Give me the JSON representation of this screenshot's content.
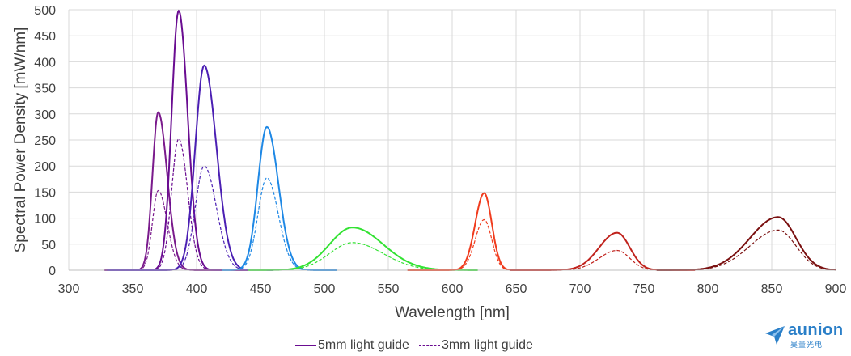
{
  "chart_data": {
    "type": "line",
    "title": "",
    "xlabel": "Wavelength [nm]",
    "ylabel": "Spectral Power Density [mW/nm]",
    "xlim": [
      300,
      900
    ],
    "ylim": [
      0,
      500
    ],
    "x_ticks": [
      300,
      350,
      400,
      450,
      500,
      550,
      600,
      650,
      700,
      750,
      800,
      850,
      900
    ],
    "y_ticks": [
      0,
      50,
      100,
      150,
      200,
      250,
      300,
      350,
      400,
      450,
      500
    ],
    "grid": true,
    "legend_position": "bottom",
    "legend": [
      {
        "label": "5mm light guide",
        "style": "solid",
        "color": "#6a0d91"
      },
      {
        "label": "3mm light guide",
        "style": "dashed",
        "color": "#6a0d91"
      }
    ],
    "series": [
      {
        "center": 370,
        "range": [
          328,
          425
        ],
        "color": "#7a1a8c",
        "solid": {
          "peak": 303,
          "sl": 4.5,
          "sr": 7
        },
        "dashed": {
          "peak": 153,
          "sl": 4.5,
          "sr": 7
        }
      },
      {
        "center": 386,
        "range": [
          330,
          440
        ],
        "color": "#6a0d91",
        "solid": {
          "peak": 498,
          "sl": 5.5,
          "sr": 7
        },
        "dashed": {
          "peak": 252,
          "sl": 5.5,
          "sr": 7
        }
      },
      {
        "center": 406,
        "range": [
          330,
          460
        ],
        "color": "#4b1fb3",
        "solid": {
          "peak": 393,
          "sl": 7,
          "sr": 9.5
        },
        "dashed": {
          "peak": 200,
          "sl": 7,
          "sr": 9.5
        }
      },
      {
        "center": 455,
        "range": [
          420,
          510
        ],
        "color": "#1e88e5",
        "solid": {
          "peak": 275,
          "sl": 7,
          "sr": 9
        },
        "dashed": {
          "peak": 177,
          "sl": 7,
          "sr": 9
        }
      },
      {
        "center": 522,
        "range": [
          440,
          620
        ],
        "color": "#33e233",
        "solid": {
          "peak": 82,
          "sl": 18,
          "sr": 24
        },
        "dashed": {
          "peak": 53,
          "sl": 18,
          "sr": 24
        }
      },
      {
        "center": 625,
        "range": [
          565,
          665
        ],
        "color": "#f03c1e",
        "solid": {
          "peak": 148,
          "sl": 7,
          "sr": 6
        },
        "dashed": {
          "peak": 97,
          "sl": 7,
          "sr": 6
        }
      },
      {
        "center": 729,
        "range": [
          645,
          790
        ],
        "color": "#c0221c",
        "solid": {
          "peak": 72,
          "sl": 14,
          "sr": 10
        },
        "dashed": {
          "peak": 38,
          "sl": 14,
          "sr": 10
        }
      },
      {
        "center": 855,
        "range": [
          760,
          900
        ],
        "color": "#7a1010",
        "solid": {
          "peak": 102,
          "sl": 22,
          "sr": 14
        },
        "dashed": {
          "peak": 77,
          "sl": 22,
          "sr": 14
        }
      }
    ]
  },
  "logo": {
    "text": "aunion",
    "sub": "昊量光电",
    "color": "#2a7fc8"
  }
}
